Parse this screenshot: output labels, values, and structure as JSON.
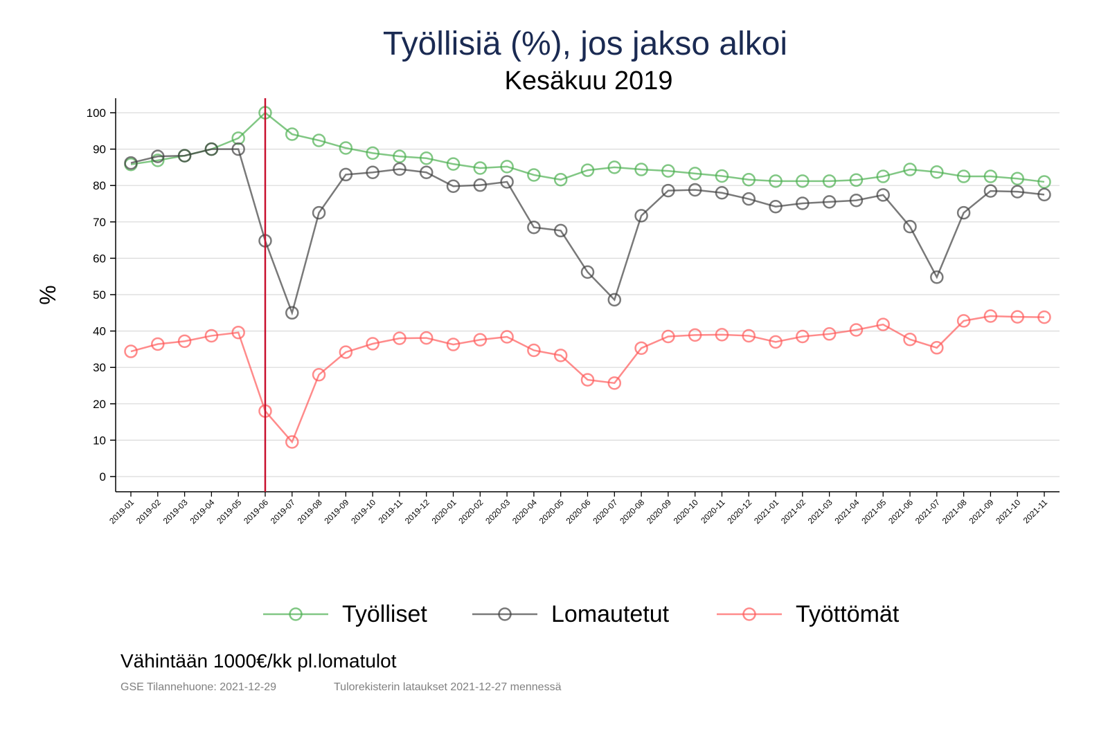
{
  "chart_data": {
    "type": "line",
    "title": "Työllisiä (%), jos jakso alkoi",
    "subtitle": "Kesäkuu 2019",
    "ylabel": "%",
    "xlabel": "",
    "ylim": [
      -4,
      104
    ],
    "yticks": [
      0,
      10,
      20,
      30,
      40,
      50,
      60,
      70,
      80,
      90,
      100
    ],
    "grid": true,
    "legend_position": "bottom",
    "reference_line": {
      "x": "2019-06",
      "color": "#c8102e"
    },
    "x": [
      "2019-01",
      "2019-02",
      "2019-03",
      "2019-04",
      "2019-05",
      "2019-06",
      "2019-07",
      "2019-08",
      "2019-09",
      "2019-10",
      "2019-11",
      "2019-12",
      "2020-01",
      "2020-02",
      "2020-03",
      "2020-04",
      "2020-05",
      "2020-06",
      "2020-07",
      "2020-08",
      "2020-09",
      "2020-10",
      "2020-11",
      "2020-12",
      "2021-01",
      "2021-02",
      "2021-03",
      "2021-04",
      "2021-05",
      "2021-06",
      "2021-07",
      "2021-08",
      "2021-09",
      "2021-10",
      "2021-11"
    ],
    "series": [
      {
        "name": "Työlliset",
        "color": "#4caf50",
        "values": [
          85.8,
          86.9,
          88.2,
          90,
          93,
          100,
          94.1,
          92.4,
          90.3,
          88.9,
          88,
          87.5,
          85.9,
          84.8,
          85.2,
          82.9,
          81.6,
          84.2,
          85,
          84.4,
          84,
          83.3,
          82.6,
          81.6,
          81.2,
          81.2,
          81.2,
          81.5,
          82.5,
          84.4,
          83.7,
          82.5,
          82.5,
          81.9,
          81
        ]
      },
      {
        "name": "Lomautetut",
        "color": "#404040",
        "values": [
          86.2,
          88,
          88.2,
          90,
          90,
          64.8,
          45,
          72.5,
          83,
          83.6,
          84.5,
          83.6,
          79.8,
          80.1,
          81,
          68.5,
          67.6,
          56.2,
          48.6,
          71.7,
          78.6,
          78.8,
          78,
          76.3,
          74.2,
          75.1,
          75.5,
          75.9,
          77.4,
          68.7,
          54.8,
          72.5,
          78.5,
          78.3,
          77.5
        ]
      },
      {
        "name": "Työttömät",
        "color": "#ff5a5a",
        "values": [
          34.4,
          36.4,
          37.2,
          38.7,
          39.6,
          18,
          9.5,
          28,
          34.2,
          36.5,
          38,
          38.1,
          36.3,
          37.6,
          38.4,
          34.7,
          33.3,
          26.6,
          25.7,
          35.3,
          38.5,
          38.9,
          39,
          38.7,
          37,
          38.5,
          39.2,
          40.3,
          41.8,
          37.7,
          35.4,
          42.8,
          44.1,
          43.9,
          43.8
        ]
      }
    ]
  },
  "footer": {
    "note": "Vähintään 1000€/kk pl.lomatulot",
    "source": "GSE Tilannehuone: 2021-12-29",
    "data_note": "Tulorekisterin lataukset 2021-12-27 mennessä"
  }
}
